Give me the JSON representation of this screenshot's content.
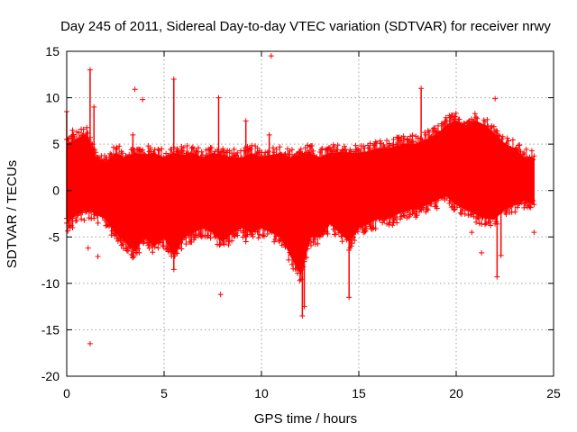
{
  "chart_data": {
    "type": "scatter",
    "title": "Day 245 of 2011, Sidereal Day-to-day VTEC variation (SDTVAR) for receiver nrwy",
    "xlabel": "GPS time / hours",
    "ylabel": "SDTVAR / TECUs",
    "xlim": [
      0,
      25
    ],
    "ylim": [
      -20,
      15
    ],
    "x_ticks": [
      0,
      5,
      10,
      15,
      20,
      25
    ],
    "y_ticks": [
      -20,
      -15,
      -10,
      -5,
      0,
      5,
      10,
      15
    ],
    "grid": true,
    "marker": "+",
    "series": [
      {
        "name": "SDTVAR",
        "color": "#ff0000",
        "band": {
          "x": [
            0.0,
            0.5,
            1.0,
            1.5,
            2.0,
            2.5,
            3.0,
            3.5,
            4.0,
            4.5,
            5.0,
            5.5,
            6.0,
            6.5,
            7.0,
            7.5,
            8.0,
            8.5,
            9.0,
            9.5,
            10.0,
            10.5,
            11.0,
            11.5,
            12.0,
            12.5,
            13.0,
            13.5,
            14.0,
            14.5,
            15.0,
            15.5,
            16.0,
            16.5,
            17.0,
            17.5,
            18.0,
            18.5,
            19.0,
            19.5,
            20.0,
            20.5,
            21.0,
            21.5,
            22.0,
            22.5,
            23.0,
            23.5,
            24.0
          ],
          "upper": [
            5.0,
            5.5,
            6.0,
            3.5,
            3.0,
            4.0,
            3.5,
            4.0,
            3.8,
            4.0,
            3.5,
            4.0,
            3.8,
            4.0,
            3.5,
            4.0,
            3.8,
            3.5,
            3.5,
            4.0,
            3.5,
            3.8,
            4.0,
            3.5,
            3.8,
            4.0,
            3.5,
            4.0,
            4.0,
            4.0,
            4.0,
            4.2,
            4.5,
            4.5,
            4.8,
            5.0,
            5.0,
            5.5,
            6.0,
            7.0,
            7.5,
            7.0,
            7.5,
            7.0,
            6.0,
            5.0,
            4.5,
            3.5,
            3.5
          ],
          "lower": [
            -3.5,
            -2.5,
            -2.0,
            -2.5,
            -3.0,
            -4.5,
            -5.5,
            -6.5,
            -5.0,
            -6.0,
            -5.0,
            -7.0,
            -5.0,
            -4.5,
            -4.0,
            -4.5,
            -5.5,
            -4.5,
            -4.0,
            -4.5,
            -4.0,
            -4.5,
            -5.0,
            -7.0,
            -9.0,
            -5.0,
            -5.0,
            -3.5,
            -4.5,
            -5.5,
            -4.0,
            -3.5,
            -3.0,
            -3.0,
            -2.5,
            -2.0,
            -2.0,
            -1.5,
            -1.0,
            -0.5,
            -1.5,
            -2.0,
            -2.5,
            -3.0,
            -3.0,
            -2.0,
            -1.5,
            -1.0,
            -1.5
          ]
        },
        "spikes": [
          {
            "x": 1.2,
            "y0": -2.0,
            "y1": 13.0
          },
          {
            "x": 1.4,
            "y0": -3.0,
            "y1": 9.0
          },
          {
            "x": 0.0,
            "y0": -3.0,
            "y1": 8.5
          },
          {
            "x": 0.3,
            "y0": -4.0,
            "y1": 6.5
          },
          {
            "x": 3.4,
            "y0": -7.0,
            "y1": 6.0
          },
          {
            "x": 5.5,
            "y0": -8.5,
            "y1": 12.0
          },
          {
            "x": 7.8,
            "y0": -5.0,
            "y1": 10.0
          },
          {
            "x": 9.2,
            "y0": -5.5,
            "y1": 7.5
          },
          {
            "x": 10.4,
            "y0": -4.0,
            "y1": 6.0
          },
          {
            "x": 12.1,
            "y0": -13.5,
            "y1": 4.0
          },
          {
            "x": 12.2,
            "y0": -12.5,
            "y1": 3.5
          },
          {
            "x": 14.5,
            "y0": -11.5,
            "y1": 3.0
          },
          {
            "x": 18.2,
            "y0": -1.0,
            "y1": 11.0
          },
          {
            "x": 22.1,
            "y0": -9.3,
            "y1": 5.0
          },
          {
            "x": 22.3,
            "y0": -7.0,
            "y1": 4.0
          }
        ],
        "outliers": [
          {
            "x": 10.5,
            "y": 14.5
          },
          {
            "x": 1.2,
            "y": -16.5
          },
          {
            "x": 7.9,
            "y": -11.2
          },
          {
            "x": 3.5,
            "y": 10.9
          },
          {
            "x": 3.9,
            "y": 9.8
          },
          {
            "x": 1.1,
            "y": -6.2
          },
          {
            "x": 1.6,
            "y": -7.1
          },
          {
            "x": 0.9,
            "y": -3.2
          },
          {
            "x": 22.0,
            "y": 9.9
          },
          {
            "x": 21.3,
            "y": -6.7
          },
          {
            "x": 24.0,
            "y": -4.5
          },
          {
            "x": 20.8,
            "y": -4.5
          }
        ]
      }
    ]
  }
}
